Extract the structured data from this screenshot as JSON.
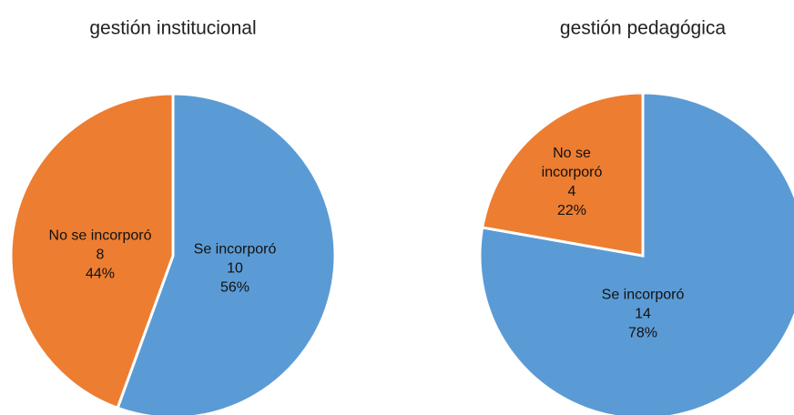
{
  "chart_data": [
    {
      "type": "pie",
      "title": "gestión institucional",
      "categories": [
        "Se incorporó",
        "No se incorporó"
      ],
      "values": [
        10,
        8
      ],
      "percent_labels": [
        "56%",
        "44%"
      ],
      "colors": [
        "#5b9bd5",
        "#ed7d31"
      ]
    },
    {
      "type": "pie",
      "title": "gestión pedagógica",
      "categories": [
        "Se incorporó",
        "No se incorporó"
      ],
      "values": [
        14,
        4
      ],
      "percent_labels": [
        "78%",
        "22%"
      ],
      "colors": [
        "#5b9bd5",
        "#ed7d31"
      ]
    }
  ]
}
